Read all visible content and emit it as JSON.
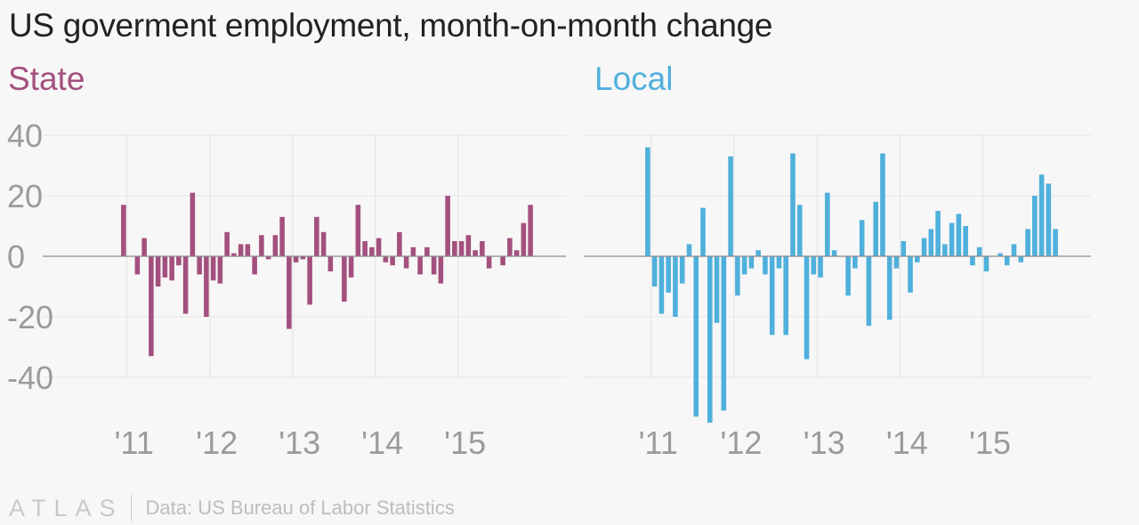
{
  "title": "US goverment employment, month-on-month change",
  "colors": {
    "state": "#a3507f",
    "local": "#4fb0dc",
    "grid": "#e4e4e4",
    "zero": "#8a8a8a",
    "tick": "#9b9b9b",
    "title": "#222222"
  },
  "footer": {
    "logo": "ATLAS",
    "source": "Data: US Bureau of Labor Statistics"
  },
  "chart_data": [
    {
      "type": "bar",
      "title": "State",
      "ylim": [
        -50,
        40
      ],
      "yticks": [
        40,
        20,
        0,
        -20,
        -40
      ],
      "ytick_labels": [
        "40",
        "20",
        "0",
        "-20",
        "-40"
      ],
      "xticks": [
        "'11",
        "'12",
        "'13",
        "'14",
        "'15"
      ],
      "grid": true,
      "color": "#a3507f",
      "values": [
        17,
        0,
        -6,
        6,
        -33,
        -10,
        -7,
        -8,
        -3,
        -19,
        21,
        -6,
        -20,
        -8,
        -9,
        8,
        1,
        4,
        4,
        -6,
        7,
        -1,
        7,
        13,
        -24,
        -2,
        -1,
        -16,
        13,
        8,
        -5,
        0,
        -15,
        -7,
        17,
        5,
        3,
        6,
        -2,
        -3,
        8,
        -4,
        3,
        -6,
        3,
        -6,
        -9,
        20,
        5,
        5,
        7,
        2,
        5,
        -4,
        0,
        -3,
        6,
        2,
        11,
        17
      ]
    },
    {
      "type": "bar",
      "title": "Local",
      "ylim": [
        -56,
        40
      ],
      "yticks": [
        40,
        20,
        0,
        -20,
        -40
      ],
      "xticks": [
        "'11",
        "'12",
        "'13",
        "'14",
        "'15"
      ],
      "grid": true,
      "color": "#4fb0dc",
      "values": [
        36,
        -10,
        -19,
        -12,
        -20,
        -9,
        4,
        -53,
        16,
        -55,
        -22,
        -51,
        33,
        -13,
        -6,
        -4,
        2,
        -6,
        -26,
        -4,
        -26,
        34,
        17,
        -34,
        -6,
        -7,
        21,
        2,
        0,
        -13,
        -4,
        12,
        -23,
        18,
        34,
        -21,
        -4,
        5,
        -12,
        -2,
        6,
        9,
        15,
        4,
        11,
        14,
        10,
        -3,
        3,
        -5,
        0,
        1,
        -3,
        4,
        -2,
        9,
        20,
        27,
        24,
        9
      ]
    }
  ]
}
